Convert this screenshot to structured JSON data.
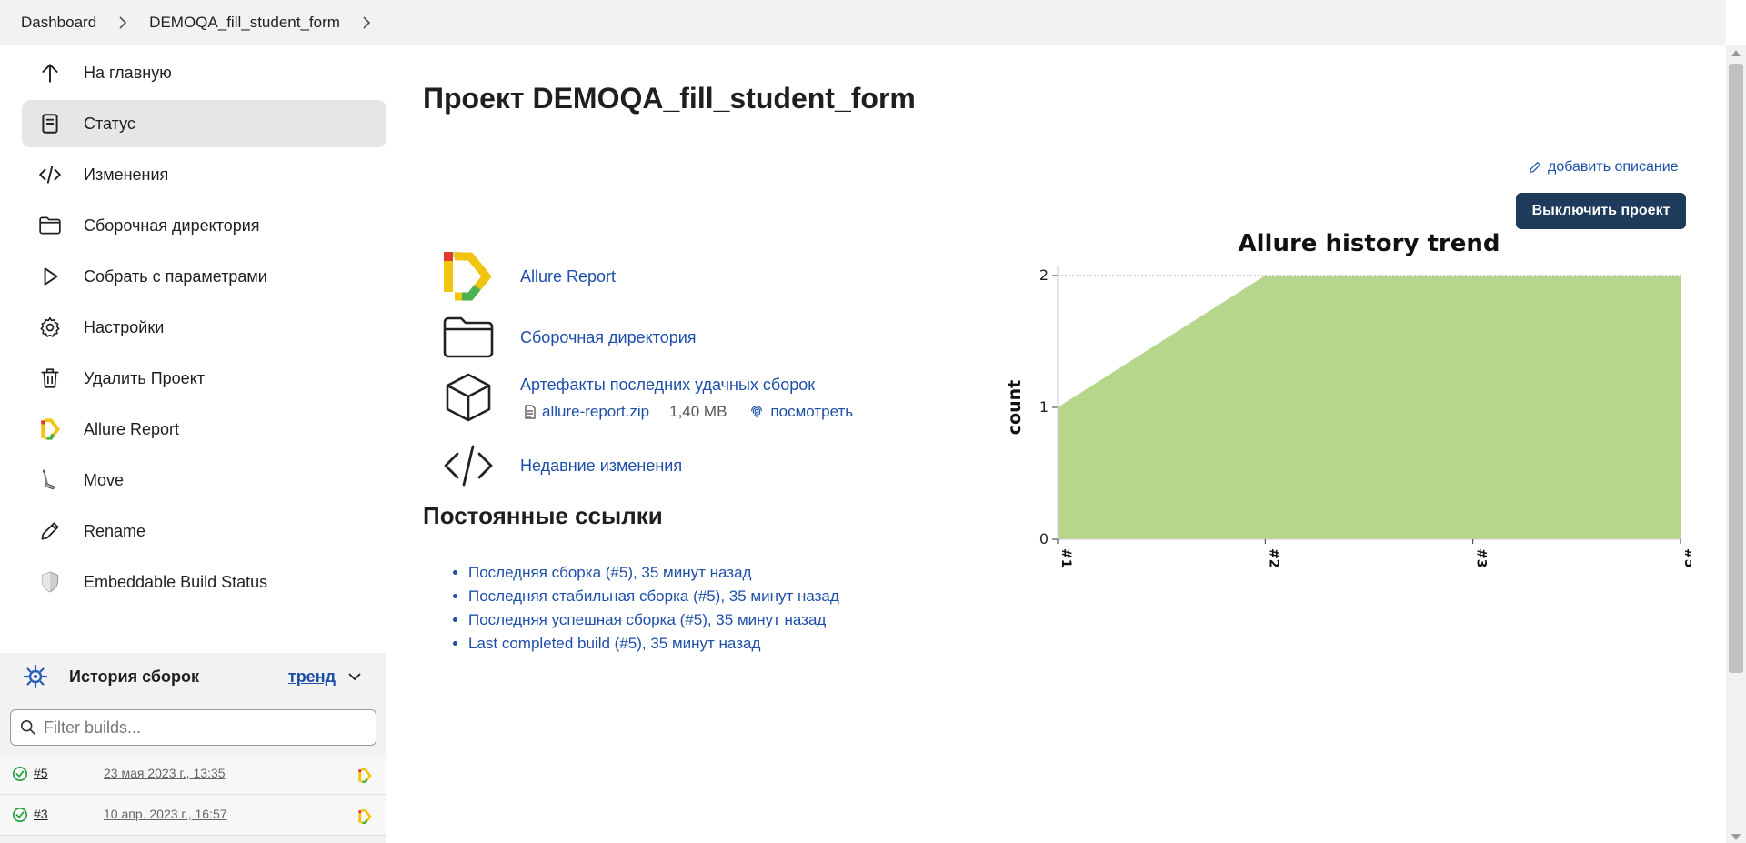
{
  "breadcrumb": {
    "items": [
      "Dashboard",
      "DEMOQA_fill_student_form"
    ]
  },
  "sidebar": {
    "items": [
      {
        "label": "На главную",
        "icon": "arrow-up-icon"
      },
      {
        "label": "Статус",
        "icon": "document-icon"
      },
      {
        "label": "Изменения",
        "icon": "code-icon"
      },
      {
        "label": "Сборочная директория",
        "icon": "folder-icon"
      },
      {
        "label": "Собрать с параметрами",
        "icon": "play-icon"
      },
      {
        "label": "Настройки",
        "icon": "gear-icon"
      },
      {
        "label": "Удалить Проект",
        "icon": "trash-icon"
      },
      {
        "label": "Allure Report",
        "icon": "allure-icon"
      },
      {
        "label": "Move",
        "icon": "move-icon"
      },
      {
        "label": "Rename",
        "icon": "pencil-icon"
      },
      {
        "label": "Embeddable Build Status",
        "icon": "shield-icon"
      }
    ]
  },
  "history": {
    "title": "История сборок",
    "trend_label": "тренд",
    "filter_placeholder": "Filter builds...",
    "builds": [
      {
        "number": "#5",
        "date": "23 мая 2023 г., 13:35"
      },
      {
        "number": "#3",
        "date": "10 апр. 2023 г., 16:57"
      }
    ]
  },
  "main": {
    "title": "Проект DEMOQA_fill_student_form",
    "add_description": "добавить описание",
    "disable_button": "Выключить проект",
    "links": {
      "allure_report": "Allure Report",
      "workspace": "Сборочная директория",
      "artifacts": "Артефакты последних удачных сборок",
      "recent_changes": "Недавние изменения"
    },
    "artifact": {
      "file": "allure-report.zip",
      "size": "1,40 MB",
      "view": "посмотреть"
    },
    "permalinks_title": "Постоянные ссылки",
    "permalinks": [
      "Последняя сборка (#5), 35 минут назад",
      "Последняя стабильная сборка (#5), 35 минут назад",
      "Последняя успешная сборка (#5), 35 минут назад",
      "Last completed build (#5), 35 минут назад"
    ]
  },
  "colors": {
    "accent": "#1e4fa8",
    "button_bg": "#1f3b5b",
    "chart_fill": "#b5d68b",
    "active_bg": "#e6e6e6",
    "ok_green": "#1f9e3a"
  },
  "chart_data": {
    "type": "area",
    "title": "Allure history trend",
    "xlabel": "",
    "ylabel": "count",
    "categories": [
      "#1",
      "#2",
      "#3",
      "#5"
    ],
    "series": [
      {
        "values": [
          1,
          2,
          2,
          2
        ]
      }
    ],
    "ylim": [
      0,
      2
    ],
    "yticks": [
      0,
      1,
      2
    ],
    "grid": true
  }
}
